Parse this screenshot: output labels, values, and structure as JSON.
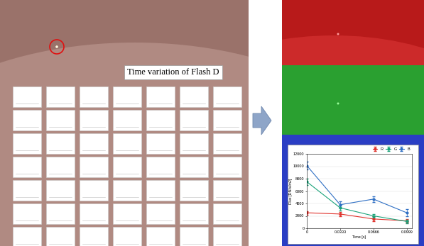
{
  "label": "Time variation of Flash D",
  "chart_data": {
    "type": "line",
    "x": [
      0,
      0.0333,
      0.0666,
      0.0999
    ],
    "xlim": [
      0,
      0.105
    ],
    "xticks": [
      0,
      0.0333,
      0.0666,
      0.0999
    ],
    "ylim": [
      0,
      12000
    ],
    "yticks": [
      0,
      2000,
      4000,
      6000,
      8000,
      10000,
      12000
    ],
    "x_label": "Time [s]",
    "y_label": "Flux [DN/s/m2]",
    "grid": true,
    "legend": "upper right",
    "marker": "o",
    "series": [
      {
        "name": "R",
        "color": "#e0322c",
        "values": [
          2500,
          2300,
          1500,
          1200
        ],
        "error": [
          300,
          300,
          400,
          300
        ]
      },
      {
        "name": "G",
        "color": "#1aa37a",
        "values": [
          7500,
          3300,
          2000,
          1100
        ],
        "error": [
          500,
          400,
          300,
          300
        ]
      },
      {
        "name": "B",
        "color": "#2e6fc4",
        "values": [
          10100,
          3800,
          4700,
          2500
        ],
        "error": [
          600,
          500,
          500,
          600
        ]
      }
    ]
  }
}
